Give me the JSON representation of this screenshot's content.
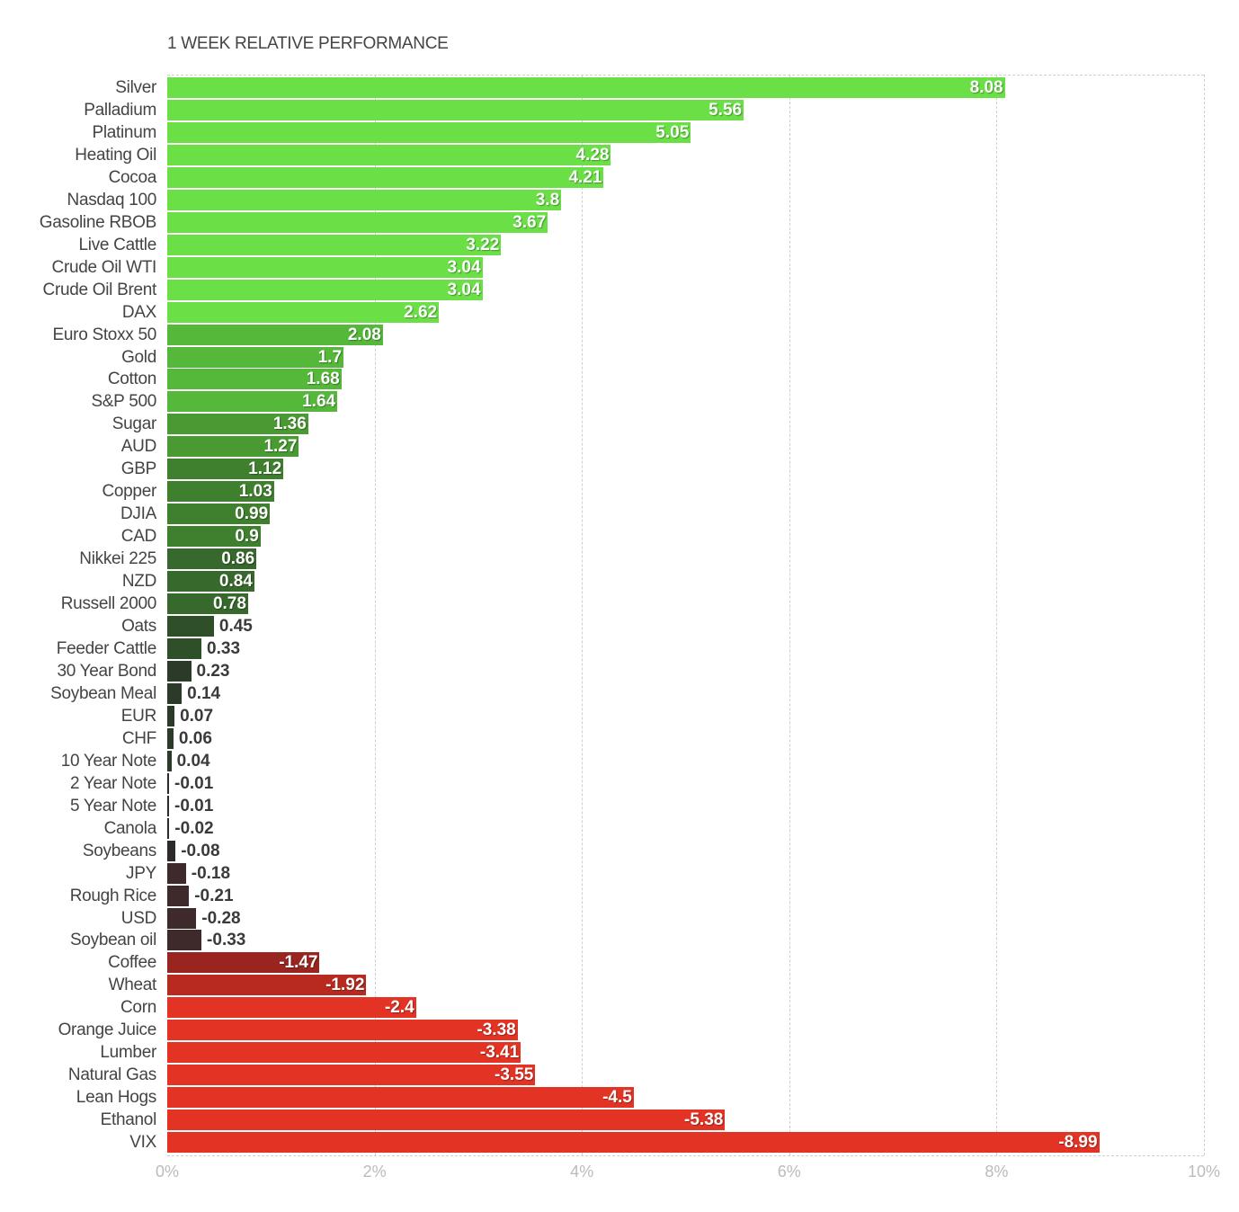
{
  "chart_data": {
    "type": "bar",
    "orientation": "horizontal",
    "title": "1 WEEK RELATIVE PERFORMANCE",
    "xlabel": "",
    "ylabel": "",
    "xlim": [
      0,
      10
    ],
    "x_tick_labels": [
      "0%",
      "2%",
      "4%",
      "6%",
      "8%",
      "10%"
    ],
    "grid": true,
    "legend": null,
    "note": "Bar length = absolute value of change; negative values shown in red shades",
    "categories": [
      "Silver",
      "Palladium",
      "Platinum",
      "Heating Oil",
      "Cocoa",
      "Nasdaq 100",
      "Gasoline RBOB",
      "Live Cattle",
      "Crude Oil WTI",
      "Crude Oil Brent",
      "DAX",
      "Euro Stoxx 50",
      "Gold",
      "Cotton",
      "S&P 500",
      "Sugar",
      "AUD",
      "GBP",
      "Copper",
      "DJIA",
      "CAD",
      "Nikkei 225",
      "NZD",
      "Russell 2000",
      "Oats",
      "Feeder Cattle",
      "30 Year Bond",
      "Soybean Meal",
      "EUR",
      "CHF",
      "10 Year Note",
      "2 Year Note",
      "5 Year Note",
      "Canola",
      "Soybeans",
      "JPY",
      "Rough Rice",
      "USD",
      "Soybean oil",
      "Coffee",
      "Wheat",
      "Corn",
      "Orange Juice",
      "Lumber",
      "Natural Gas",
      "Lean Hogs",
      "Ethanol",
      "VIX"
    ],
    "values": [
      8.08,
      5.56,
      5.05,
      4.28,
      4.21,
      3.8,
      3.67,
      3.22,
      3.04,
      3.04,
      2.62,
      2.08,
      1.7,
      1.68,
      1.64,
      1.36,
      1.27,
      1.12,
      1.03,
      0.99,
      0.9,
      0.86,
      0.84,
      0.78,
      0.45,
      0.33,
      0.23,
      0.14,
      0.07,
      0.06,
      0.04,
      -0.01,
      -0.01,
      -0.02,
      -0.08,
      -0.18,
      -0.21,
      -0.28,
      -0.33,
      -1.47,
      -1.92,
      -2.4,
      -3.38,
      -3.41,
      -3.55,
      -4.5,
      -5.38,
      -8.99
    ],
    "value_labels": [
      "8.08",
      "5.56",
      "5.05",
      "4.28",
      "4.21",
      "3.8",
      "3.67",
      "3.22",
      "3.04",
      "3.04",
      "2.62",
      "2.08",
      "1.7",
      "1.68",
      "1.64",
      "1.36",
      "1.27",
      "1.12",
      "1.03",
      "0.99",
      "0.9",
      "0.86",
      "0.84",
      "0.78",
      "0.45",
      "0.33",
      "0.23",
      "0.14",
      "0.07",
      "0.06",
      "0.04",
      "-0.01",
      "-0.01",
      "-0.02",
      "-0.08",
      "-0.18",
      "-0.21",
      "-0.28",
      "-0.33",
      "-1.47",
      "-1.92",
      "-2.4",
      "-3.38",
      "-3.41",
      "-3.55",
      "-4.5",
      "-5.38",
      "-8.99"
    ]
  },
  "colors": {
    "positive_strong": "#6ae046",
    "positive_mid": "#4aa532",
    "positive_weak": "#2e4a28",
    "neutral": "#333333",
    "negative_weak": "#3e2a2a",
    "negative_mid": "#a8241c",
    "negative_strong": "#e33325",
    "grid": "#cfcfcf",
    "tick_text": "#bbbbbb",
    "label_text": "#444444"
  }
}
